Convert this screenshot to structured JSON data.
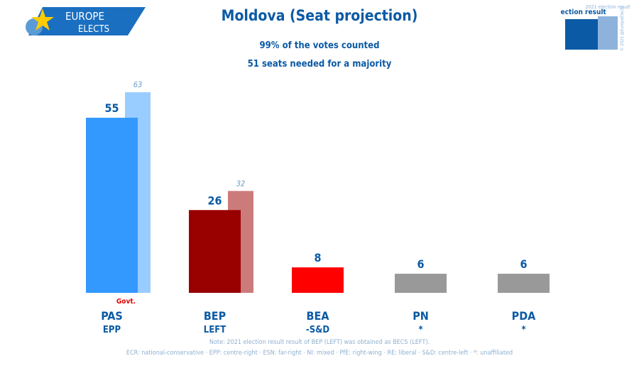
{
  "header": {
    "title": "Moldova (Seat projection)",
    "subtitle1": "99% of the votes counted",
    "subtitle2": "51 seats needed for a majority",
    "logo_line1": "EUROPE",
    "logo_line2": "ELECTS"
  },
  "legend": {
    "current": "Election result",
    "previous": "2021 election result",
    "copyright": "© 2025 @EuropeElects"
  },
  "chart_data": {
    "type": "bar",
    "title": "Moldova (Seat projection)",
    "categories": [
      "PAS",
      "BEP",
      "BEA",
      "PN",
      "PDA"
    ],
    "groups": [
      "EPP",
      "LEFT",
      "-S&D",
      "*",
      "*"
    ],
    "series": [
      {
        "name": "Election result",
        "values": [
          55,
          26,
          8,
          6,
          6
        ]
      },
      {
        "name": "2021 election result",
        "values": [
          63,
          32,
          null,
          null,
          null
        ]
      }
    ],
    "colors": [
      "#3399ff",
      "#990000",
      "#ff0000",
      "#999999",
      "#999999"
    ],
    "prev_colors": [
      "#99ccff",
      "#cc7b7b",
      null,
      null,
      null
    ],
    "annotations": [
      {
        "category": "PAS",
        "text": "Govt."
      }
    ],
    "ylim": [
      0,
      65
    ]
  },
  "footer": {
    "note": "Note: 2021 election result result of BEP (LEFT) was obtained as BECS (LEFT).",
    "groups": "ECR: national-conservative · EPP: centre-right · ESN: far-right · NI: mixed · PfE: right-wing · RE: liberal · S&D: centre-left · *: unaffiliated"
  }
}
